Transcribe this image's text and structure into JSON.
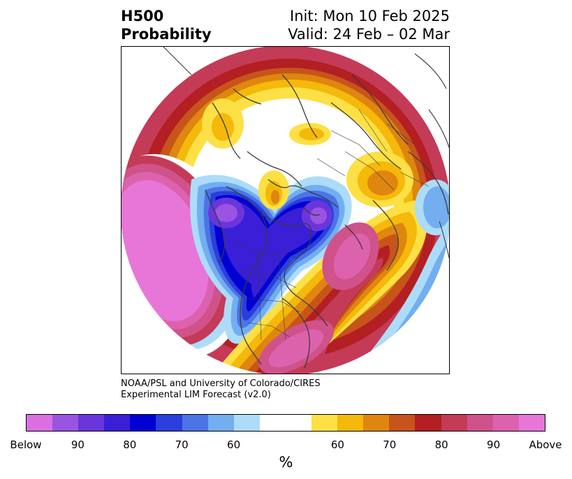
{
  "title": {
    "left_line1": "H500",
    "left_line2": "Probability",
    "right_line1": "Init: Mon 10 Feb 2025",
    "right_line2": "Valid: 24 Feb – 02 Mar"
  },
  "credit": {
    "line1": "NOAA/PSL and University of Colorado/CIRES",
    "line2": "Experimental LIM Forecast (v2.0)"
  },
  "colorbar": {
    "label": "%",
    "colors": [
      "#da6fe4",
      "#9a54e2",
      "#6b35dc",
      "#3a1fd6",
      "#0000d2",
      "#2a3fdb",
      "#4c74e6",
      "#72aef0",
      "#acdcfa",
      "#ffffff",
      "#ffffff",
      "#fde045",
      "#f4b90a",
      "#de860f",
      "#c7541a",
      "#b31f22",
      "#c43b58",
      "#d0528a",
      "#dd62ae",
      "#e776d8"
    ],
    "ticks": [
      "Below",
      "90",
      "80",
      "70",
      "60",
      "60",
      "70",
      "80",
      "90",
      "Above"
    ]
  },
  "map": {
    "projection": "polar-stereographic north hemisphere",
    "variable": "500 hPa geopotential height probability",
    "regions": [
      {
        "name": "north-pacific-below",
        "category": "Below"
      },
      {
        "name": "north-america-below",
        "category": "Below"
      },
      {
        "name": "western-atlantic-above",
        "category": "Above"
      },
      {
        "name": "subtropical-atlantic-below",
        "category": "Below"
      },
      {
        "name": "eurasia-arctic-above",
        "category": "Above"
      },
      {
        "name": "siberia-above",
        "category": "Above"
      }
    ]
  }
}
